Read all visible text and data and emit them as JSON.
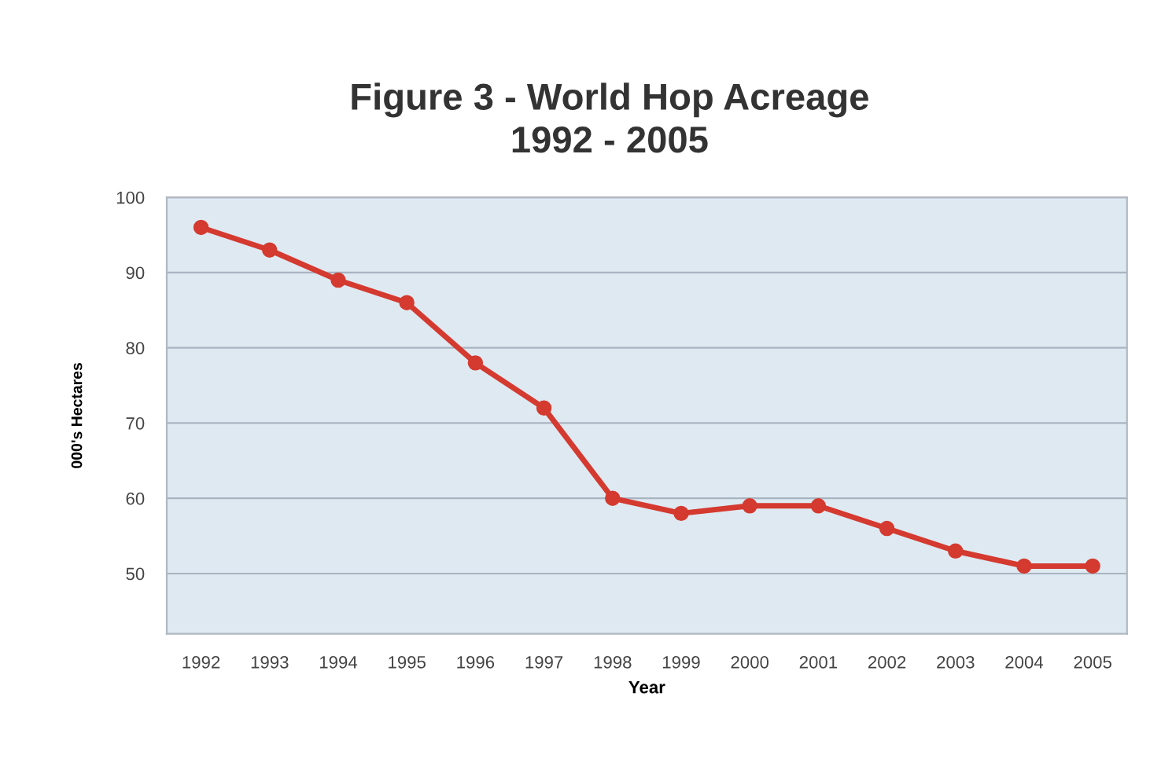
{
  "chart_data": {
    "type": "line",
    "title": "Figure 3 - World Hop Acreage\n1992 - 2005",
    "xlabel": "Year",
    "ylabel": "000's Hectares",
    "categories": [
      "1992",
      "1993",
      "1994",
      "1995",
      "1996",
      "1997",
      "1998",
      "1999",
      "2000",
      "2001",
      "2002",
      "2003",
      "2004",
      "2005"
    ],
    "series": [
      {
        "color": "#d43a2f",
        "values": [
          96,
          93,
          89,
          86,
          78,
          72,
          60,
          58,
          59,
          59,
          56,
          53,
          51,
          51
        ]
      }
    ],
    "ylim": [
      42,
      100
    ],
    "yticks": [
      50,
      60,
      70,
      80,
      90,
      100
    ],
    "grid": "y",
    "marker": "circle",
    "line_style": "solid",
    "legend": false
  }
}
